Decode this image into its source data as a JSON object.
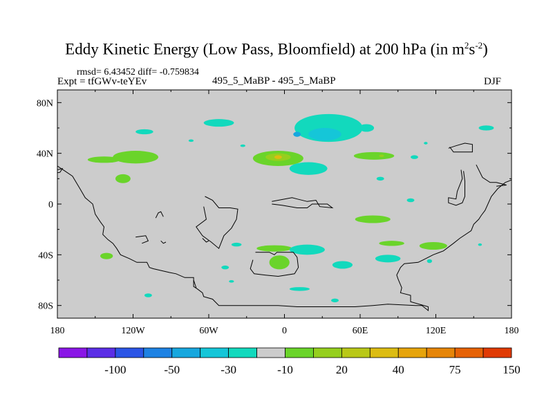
{
  "header": {
    "title_main": "Eddy Kinetic Energy (Low Pass, Bloomfield) at 200 hPa (in m",
    "title_sup1": "2",
    "title_mid": "s",
    "title_sup2": "-2",
    "title_end": ")",
    "rmsd_line": "rmsd= 6.43452 diff= -0.759834",
    "expt_line": "Expt = tfGWv-teYEv",
    "center_label": "495_5_MaBP - 495_5_MaBP",
    "season": "DJF"
  },
  "chart_data": {
    "type": "heatmap",
    "title": "Eddy Kinetic Energy (Low Pass, Bloomfield) at 200 hPa (in m2s-2)",
    "x_axis": {
      "range": [
        -180,
        180
      ],
      "tick_values": [
        -180,
        -120,
        -60,
        0,
        60,
        120,
        180
      ],
      "tick_labels": [
        "180",
        "120W",
        "60W",
        "0",
        "60E",
        "120E",
        "180"
      ]
    },
    "y_axis": {
      "range": [
        -90,
        90
      ],
      "tick_values": [
        80,
        40,
        0,
        -40,
        -80
      ],
      "tick_labels": [
        "80N",
        "40N",
        "0",
        "40S",
        "80S"
      ]
    },
    "background_color": "#cccccc",
    "coastline_color": "#000000",
    "colorbar": {
      "levels": [
        "-100",
        "-50",
        "-30",
        "-10",
        "20",
        "40",
        "75",
        "150"
      ],
      "colors": [
        "#8a16e6",
        "#5b2ee6",
        "#2b55e6",
        "#1e82e3",
        "#17a7de",
        "#15c6d8",
        "#12d9bd",
        "#cccccc",
        "#6ad42a",
        "#95cf1e",
        "#b9c818",
        "#dcbc12",
        "#e6a40c",
        "#e68508",
        "#e66206",
        "#e03a04"
      ]
    },
    "regions": [
      {
        "color": "#12d9bd",
        "lon": 160,
        "lat": 60,
        "dlon": 6,
        "dlat": 2
      },
      {
        "color": "#12d9bd",
        "lon": -111,
        "lat": 57,
        "dlon": 7,
        "dlat": 2
      },
      {
        "color": "#12d9bd",
        "lon": -52,
        "lat": 64,
        "dlon": 12,
        "dlat": 3
      },
      {
        "color": "#12d9bd",
        "lon": 35,
        "lat": 60,
        "dlon": 27,
        "dlat": 11
      },
      {
        "color": "#15c6d8",
        "lon": 32,
        "lat": 55,
        "dlon": 13,
        "dlat": 5
      },
      {
        "color": "#17a7de",
        "lon": 10,
        "lat": 55,
        "dlon": 3,
        "dlat": 2
      },
      {
        "color": "#12d9bd",
        "lon": 65,
        "lat": 60,
        "dlon": 6,
        "dlat": 3
      },
      {
        "color": "#12d9bd",
        "lon": -74,
        "lat": 50,
        "dlon": 2,
        "dlat": 1
      },
      {
        "color": "#12d9bd",
        "lon": -33,
        "lat": 46,
        "dlon": 2,
        "dlat": 1
      },
      {
        "color": "#12d9bd",
        "lon": 112,
        "lat": 48,
        "dlon": 1.5,
        "dlat": 1
      },
      {
        "color": "#6ad42a",
        "lon": -143,
        "lat": 35,
        "dlon": 13,
        "dlat": 2.5
      },
      {
        "color": "#6ad42a",
        "lon": -118,
        "lat": 37,
        "dlon": 18,
        "dlat": 5
      },
      {
        "color": "#6ad42a",
        "lon": -128,
        "lat": 20,
        "dlon": 6,
        "dlat": 3.5
      },
      {
        "color": "#6ad42a",
        "lon": -5,
        "lat": 36,
        "dlon": 20,
        "dlat": 6
      },
      {
        "color": "#95cf1e",
        "lon": -5,
        "lat": 37,
        "dlon": 10,
        "dlat": 3
      },
      {
        "color": "#dcbc12",
        "lon": -5,
        "lat": 37,
        "dlon": 3,
        "dlat": 1.5
      },
      {
        "color": "#12d9bd",
        "lon": 19,
        "lat": 28,
        "dlon": 15,
        "dlat": 5
      },
      {
        "color": "#6ad42a",
        "lon": 71,
        "lat": 38,
        "dlon": 16,
        "dlat": 3
      },
      {
        "color": "#95cf1e",
        "lon": 77,
        "lat": 38,
        "dlon": 2,
        "dlat": 1
      },
      {
        "color": "#12d9bd",
        "lon": 103,
        "lat": 37,
        "dlon": 3,
        "dlat": 1.5
      },
      {
        "color": "#12d9bd",
        "lon": 76,
        "lat": 20,
        "dlon": 3,
        "dlat": 1.5
      },
      {
        "color": "#12d9bd",
        "lon": 100,
        "lat": 3,
        "dlon": 3,
        "dlat": 1.5
      },
      {
        "color": "#6ad42a",
        "lon": 70,
        "lat": -12,
        "dlon": 14,
        "dlat": 3
      },
      {
        "color": "#6ad42a",
        "lon": -8,
        "lat": -35,
        "dlon": 14,
        "dlat": 2.5
      },
      {
        "color": "#12d9bd",
        "lon": 18,
        "lat": -36,
        "dlon": 14,
        "dlat": 4
      },
      {
        "color": "#12d9bd",
        "lon": -38,
        "lat": -32,
        "dlon": 4,
        "dlat": 1.5
      },
      {
        "color": "#6ad42a",
        "lon": 85,
        "lat": -31,
        "dlon": 10,
        "dlat": 2
      },
      {
        "color": "#6ad42a",
        "lon": 118,
        "lat": -33,
        "dlon": 11,
        "dlat": 3
      },
      {
        "color": "#6ad42a",
        "lon": -141,
        "lat": -41,
        "dlon": 5,
        "dlat": 2.5
      },
      {
        "color": "#6ad42a",
        "lon": -4,
        "lat": -46,
        "dlon": 8,
        "dlat": 5.5
      },
      {
        "color": "#12d9bd",
        "lon": 46,
        "lat": -48,
        "dlon": 8,
        "dlat": 3
      },
      {
        "color": "#12d9bd",
        "lon": 82,
        "lat": -43,
        "dlon": 10,
        "dlat": 3
      },
      {
        "color": "#12d9bd",
        "lon": -47,
        "lat": -50,
        "dlon": 3,
        "dlat": 1.5
      },
      {
        "color": "#12d9bd",
        "lon": 115,
        "lat": -45,
        "dlon": 2,
        "dlat": 1.5
      },
      {
        "color": "#12d9bd",
        "lon": 155,
        "lat": -32,
        "dlon": 1.5,
        "dlat": 1
      },
      {
        "color": "#12d9bd",
        "lon": -42,
        "lat": -61,
        "dlon": 2,
        "dlat": 1
      },
      {
        "color": "#12d9bd",
        "lon": 12,
        "lat": -67,
        "dlon": 8,
        "dlat": 1.5
      },
      {
        "color": "#12d9bd",
        "lon": -108,
        "lat": -72,
        "dlon": 3,
        "dlat": 1.5
      },
      {
        "color": "#12d9bd",
        "lon": 40,
        "lat": -76,
        "dlon": 3,
        "dlat": 1.5
      }
    ],
    "coastlines": [
      [
        [
          -180,
          30
        ],
        [
          -174,
          26
        ],
        [
          -168,
          22
        ],
        [
          -162,
          12
        ],
        [
          -158,
          5
        ],
        [
          -152,
          0
        ],
        [
          -150,
          -8
        ],
        [
          -146,
          -14
        ],
        [
          -143,
          -18
        ],
        [
          -144,
          -24
        ],
        [
          -140,
          -28
        ],
        [
          -136,
          -31
        ],
        [
          -133,
          -35
        ],
        [
          -130,
          -40
        ],
        [
          -123,
          -43
        ],
        [
          -117,
          -46
        ],
        [
          -109,
          -46
        ],
        [
          -107,
          -50
        ],
        [
          -104,
          -51
        ],
        [
          -91,
          -54
        ],
        [
          -86,
          -55
        ],
        [
          -79,
          -58
        ],
        [
          -72,
          -58
        ],
        [
          -72,
          -65
        ],
        [
          -69,
          -67
        ],
        [
          -65,
          -70
        ],
        [
          -64,
          -73
        ],
        [
          -57,
          -75
        ],
        [
          -52,
          -80
        ],
        [
          -5,
          -80
        ],
        [
          10,
          -81
        ],
        [
          56,
          -81
        ],
        [
          70,
          -80
        ],
        [
          82,
          -79
        ],
        [
          104,
          -80
        ],
        [
          109,
          -80
        ],
        [
          114,
          -84
        ],
        [
          114,
          -81
        ],
        [
          100,
          -77
        ],
        [
          100,
          -72
        ],
        [
          92,
          -70
        ],
        [
          93,
          -66
        ],
        [
          90,
          -59
        ],
        [
          89,
          -56
        ],
        [
          92,
          -50
        ],
        [
          95,
          -47
        ],
        [
          106,
          -46
        ],
        [
          110,
          -44
        ],
        [
          118,
          -40
        ],
        [
          126,
          -37
        ],
        [
          134,
          -31
        ],
        [
          139,
          -27
        ],
        [
          148,
          -21
        ],
        [
          150,
          -16
        ],
        [
          154,
          -12
        ],
        [
          156,
          -9
        ],
        [
          159,
          -5
        ],
        [
          164,
          6
        ],
        [
          169,
          12
        ],
        [
          175,
          17
        ],
        [
          180,
          19
        ]
      ],
      [
        [
          -64,
          -2
        ],
        [
          -62,
          -12
        ],
        [
          -70,
          -18
        ],
        [
          -65,
          -25
        ],
        [
          -58,
          -30
        ],
        [
          -52,
          -35
        ],
        [
          -48,
          -25
        ],
        [
          -42,
          -19
        ],
        [
          -38,
          -12
        ],
        [
          -37,
          -4
        ],
        [
          -43,
          -3
        ],
        [
          -52,
          -3
        ],
        [
          -57,
          3
        ],
        [
          -63,
          6
        ]
      ],
      [
        [
          -10,
          2
        ],
        [
          6,
          5
        ],
        [
          10,
          4
        ],
        [
          18,
          2
        ],
        [
          25,
          3
        ],
        [
          28,
          -2
        ],
        [
          38,
          -3
        ],
        [
          34,
          0
        ],
        [
          22,
          0
        ],
        [
          18,
          -3
        ],
        [
          10,
          -3
        ],
        [
          -2,
          -1
        ],
        [
          -10,
          0
        ]
      ],
      [
        [
          -23,
          -38
        ],
        [
          -12,
          -38
        ],
        [
          -8,
          -40
        ],
        [
          -6,
          -38
        ],
        [
          -1,
          -38
        ],
        [
          7,
          -38
        ],
        [
          10,
          -42
        ],
        [
          11,
          -50
        ],
        [
          8,
          -55
        ],
        [
          -5,
          -57
        ],
        [
          -15,
          -56
        ],
        [
          -24,
          -55
        ],
        [
          -27,
          -51
        ],
        [
          -25,
          -44
        ]
      ],
      [
        [
          130,
          44
        ],
        [
          136,
          46
        ],
        [
          143,
          48
        ],
        [
          149,
          47
        ],
        [
          149,
          41
        ],
        [
          134,
          41
        ],
        [
          131,
          45
        ]
      ],
      [
        [
          152,
          31
        ],
        [
          157,
          21
        ],
        [
          163,
          17
        ],
        [
          168,
          17
        ],
        [
          176,
          15
        ],
        [
          168,
          14
        ]
      ],
      [
        [
          140,
          27
        ],
        [
          141,
          20
        ],
        [
          137,
          10
        ],
        [
          136,
          4
        ],
        [
          130,
          5
        ],
        [
          130,
          1
        ],
        [
          136,
          -1
        ],
        [
          141,
          1
        ],
        [
          143,
          6
        ],
        [
          143,
          18
        ],
        [
          142,
          26
        ]
      ],
      [
        [
          -184,
          26
        ],
        [
          -176,
          28
        ],
        [
          -178,
          25
        ],
        [
          -184,
          24
        ]
      ],
      [
        [
          -102,
          -11
        ],
        [
          -100,
          -7
        ],
        [
          -98,
          -6
        ],
        [
          -96,
          -10
        ]
      ],
      [
        [
          -98,
          -29
        ],
        [
          -96,
          -31
        ],
        [
          -94,
          -30
        ]
      ],
      [
        [
          -118,
          -26
        ],
        [
          -110,
          -25
        ],
        [
          -108,
          -29
        ],
        [
          -113,
          -31
        ]
      ],
      [
        [
          -72,
          -60
        ],
        [
          -70,
          -66
        ]
      ],
      [
        [
          -65,
          -27
        ],
        [
          -62,
          -30
        ],
        [
          -60,
          -29
        ]
      ]
    ]
  }
}
